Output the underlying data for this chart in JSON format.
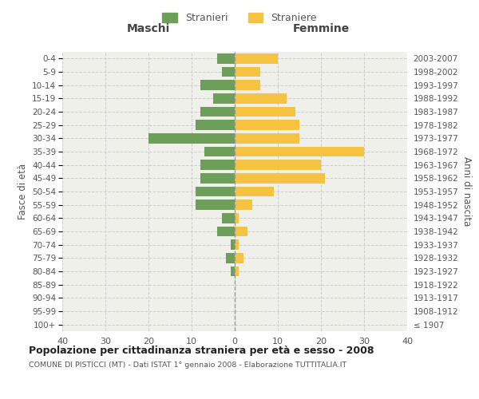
{
  "age_groups": [
    "100+",
    "95-99",
    "90-94",
    "85-89",
    "80-84",
    "75-79",
    "70-74",
    "65-69",
    "60-64",
    "55-59",
    "50-54",
    "45-49",
    "40-44",
    "35-39",
    "30-34",
    "25-29",
    "20-24",
    "15-19",
    "10-14",
    "5-9",
    "0-4"
  ],
  "birth_years": [
    "≤ 1907",
    "1908-1912",
    "1913-1917",
    "1918-1922",
    "1923-1927",
    "1928-1932",
    "1933-1937",
    "1938-1942",
    "1943-1947",
    "1948-1952",
    "1953-1957",
    "1958-1962",
    "1963-1967",
    "1968-1972",
    "1973-1977",
    "1978-1982",
    "1983-1987",
    "1988-1992",
    "1993-1997",
    "1998-2002",
    "2003-2007"
  ],
  "maschi": [
    0,
    0,
    0,
    0,
    1,
    2,
    1,
    4,
    3,
    9,
    9,
    8,
    8,
    7,
    20,
    9,
    8,
    5,
    8,
    3,
    4
  ],
  "femmine": [
    0,
    0,
    0,
    0,
    1,
    2,
    1,
    3,
    1,
    4,
    9,
    21,
    20,
    30,
    15,
    15,
    14,
    12,
    6,
    6,
    10
  ],
  "maschi_color": "#6d9e5a",
  "femmine_color": "#f5c242",
  "xlim": 40,
  "title": "Popolazione per cittadinanza straniera per età e sesso - 2008",
  "subtitle": "COMUNE DI PISTICCI (MT) - Dati ISTAT 1° gennaio 2008 - Elaborazione TUTTITALIA.IT",
  "ylabel_left": "Fasce di età",
  "ylabel_right": "Anni di nascita",
  "maschi_label": "Stranieri",
  "femmine_label": "Straniere",
  "maschi_header": "Maschi",
  "femmine_header": "Femmine",
  "bg_color": "#ffffff",
  "plot_bg": "#f0f0eb",
  "grid_color": "#cccccc",
  "label_color": "#555555",
  "header_color": "#444444"
}
